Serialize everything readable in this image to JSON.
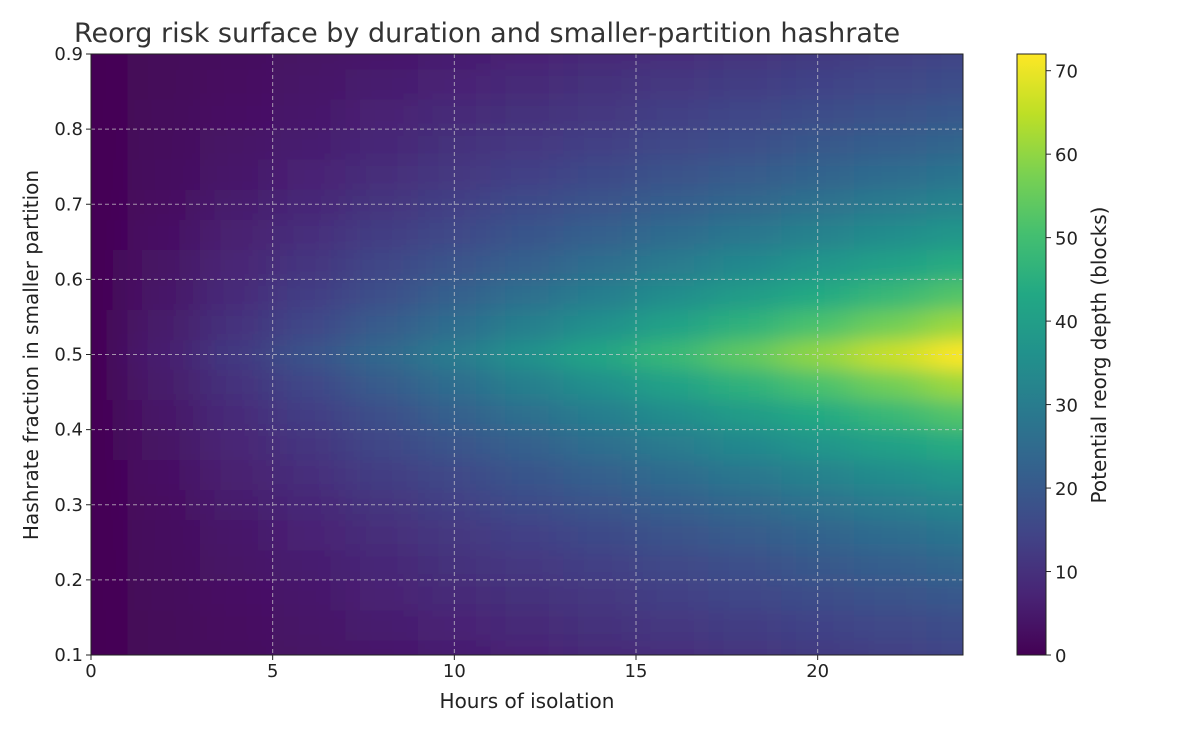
{
  "chart_data": {
    "type": "heatmap",
    "title": "Reorg risk surface by duration and smaller-partition hashrate",
    "xlabel": "Hours of isolation",
    "ylabel": "Hashrate fraction in smaller partition",
    "colorbar_label": "Potential reorg depth (blocks)",
    "colormap": "viridis",
    "xlim": [
      0,
      24
    ],
    "ylim": [
      0.1,
      0.9
    ],
    "clim": [
      0,
      72
    ],
    "grid": true,
    "xticks": [
      "0",
      "5",
      "10",
      "15",
      "20"
    ],
    "xtick_values": [
      0,
      5,
      10,
      15,
      20
    ],
    "yticks": [
      "0.1",
      "0.2",
      "0.3",
      "0.4",
      "0.5",
      "0.6",
      "0.7",
      "0.8",
      "0.9"
    ],
    "ytick_values": [
      0.1,
      0.2,
      0.3,
      0.4,
      0.5,
      0.6,
      0.7,
      0.8,
      0.9
    ],
    "colorbar_ticks": [
      "0",
      "10",
      "20",
      "30",
      "40",
      "50",
      "60",
      "70"
    ],
    "colorbar_tick_values": [
      0,
      10,
      20,
      30,
      40,
      50,
      60,
      70
    ],
    "x": [
      0,
      2,
      4,
      6,
      8,
      10,
      12,
      14,
      16,
      18,
      20,
      22,
      24
    ],
    "y": [
      0.1,
      0.14,
      0.18,
      0.22,
      0.26,
      0.3,
      0.34,
      0.38,
      0.42,
      0.46,
      0.5,
      0.54,
      0.58,
      0.62,
      0.66,
      0.7,
      0.74,
      0.78,
      0.82,
      0.86,
      0.9
    ],
    "z": [
      [
        0,
        1.2,
        2.4,
        3.6,
        4.8,
        6.1,
        7.3,
        8.5,
        9.7,
        10.9,
        12.1,
        13.3,
        14.5
      ],
      [
        0,
        1.4,
        2.8,
        4.3,
        5.7,
        7.1,
        8.5,
        9.9,
        11.4,
        12.8,
        14.2,
        15.6,
        17.0
      ],
      [
        0,
        1.7,
        3.3,
        5.0,
        6.7,
        8.4,
        10.0,
        11.7,
        13.4,
        15.0,
        16.7,
        18.4,
        20.0
      ],
      [
        0,
        2.0,
        3.9,
        5.9,
        7.8,
        9.8,
        11.8,
        13.7,
        15.7,
        17.6,
        19.6,
        21.6,
        23.5
      ],
      [
        0,
        2.3,
        4.6,
        6.9,
        9.2,
        11.5,
        13.8,
        16.1,
        18.4,
        20.7,
        23.0,
        25.3,
        27.6
      ],
      [
        0,
        2.7,
        5.4,
        8.1,
        10.8,
        13.5,
        16.2,
        18.9,
        21.6,
        24.3,
        27.0,
        29.7,
        32.4
      ],
      [
        0,
        3.2,
        6.3,
        9.5,
        12.6,
        15.8,
        19.0,
        22.1,
        25.3,
        28.4,
        31.6,
        34.8,
        37.9
      ],
      [
        0,
        3.7,
        7.4,
        11.1,
        14.8,
        18.6,
        22.3,
        26.0,
        29.7,
        33.4,
        37.1,
        40.8,
        44.5
      ],
      [
        0,
        4.4,
        8.7,
        13.1,
        17.4,
        21.8,
        26.2,
        30.5,
        34.9,
        39.2,
        43.6,
        48.0,
        52.3
      ],
      [
        0,
        5.1,
        10.2,
        15.3,
        20.4,
        25.6,
        30.7,
        35.8,
        40.9,
        46.0,
        51.1,
        56.2,
        61.3
      ],
      [
        0,
        6,
        12,
        18,
        24,
        30,
        36,
        42,
        48,
        54,
        60,
        66,
        72
      ],
      [
        0,
        5.1,
        10.2,
        15.3,
        20.4,
        25.6,
        30.7,
        35.8,
        40.9,
        46.0,
        51.1,
        56.2,
        61.3
      ],
      [
        0,
        4.4,
        8.7,
        13.1,
        17.4,
        21.8,
        26.2,
        30.5,
        34.9,
        39.2,
        43.6,
        48.0,
        52.3
      ],
      [
        0,
        3.7,
        7.4,
        11.1,
        14.8,
        18.6,
        22.3,
        26.0,
        29.7,
        33.4,
        37.1,
        40.8,
        44.5
      ],
      [
        0,
        3.2,
        6.3,
        9.5,
        12.6,
        15.8,
        19.0,
        22.1,
        25.3,
        28.4,
        31.6,
        34.8,
        37.9
      ],
      [
        0,
        2.7,
        5.4,
        8.1,
        10.8,
        13.5,
        16.2,
        18.9,
        21.6,
        24.3,
        27.0,
        29.7,
        32.4
      ],
      [
        0,
        2.3,
        4.6,
        6.9,
        9.2,
        11.5,
        13.8,
        16.1,
        18.4,
        20.7,
        23.0,
        25.3,
        27.6
      ],
      [
        0,
        2.0,
        3.9,
        5.9,
        7.8,
        9.8,
        11.8,
        13.7,
        15.7,
        17.6,
        19.6,
        21.6,
        23.5
      ],
      [
        0,
        1.7,
        3.3,
        5.0,
        6.7,
        8.4,
        10.0,
        11.7,
        13.4,
        15.0,
        16.7,
        18.4,
        20.0
      ],
      [
        0,
        1.4,
        2.8,
        4.3,
        5.7,
        7.1,
        8.5,
        9.9,
        11.4,
        12.8,
        14.2,
        15.6,
        17.0
      ],
      [
        0,
        1.2,
        2.4,
        3.6,
        4.8,
        6.1,
        7.3,
        8.5,
        9.7,
        10.9,
        12.1,
        13.3,
        14.5
      ]
    ]
  }
}
